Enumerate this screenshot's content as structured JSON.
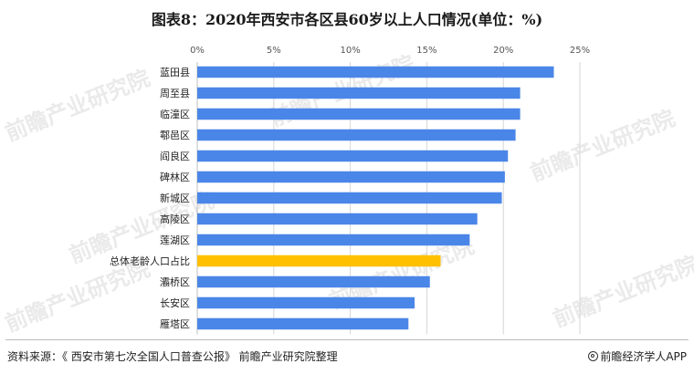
{
  "chart_data": {
    "type": "bar",
    "orientation": "horizontal",
    "title": "图表8：2020年西安市各区县60岁以上人口情况(单位：%)",
    "xlim": [
      0,
      25
    ],
    "x_ticks": [
      "0%",
      "5%",
      "10%",
      "15%",
      "20%",
      "25%"
    ],
    "x_axis_position": "top",
    "grid": true,
    "categories": [
      "蓝田县",
      "周至县",
      "临潼区",
      "鄠邑区",
      "阎良区",
      "碑林区",
      "新城区",
      "高陵区",
      "莲湖区",
      "总体老龄人口占比",
      "灞桥区",
      "长安区",
      "雁塔区"
    ],
    "values": [
      23.3,
      21.1,
      21.1,
      20.8,
      20.3,
      20.1,
      19.9,
      18.3,
      17.8,
      15.9,
      15.2,
      14.2,
      13.8
    ],
    "highlight_category": "总体老龄人口占比",
    "colors": {
      "bar": "#4a86e8",
      "highlight": "#ffc000",
      "grid": "#d6d6d6"
    }
  },
  "footer": {
    "source": "资料来源：《 西安市第七次全国人口普查公报》 前瞻产业研究院整理",
    "brand": "前瞻经济学人APP"
  },
  "watermark": {
    "text": "前瞻产业研究院"
  }
}
